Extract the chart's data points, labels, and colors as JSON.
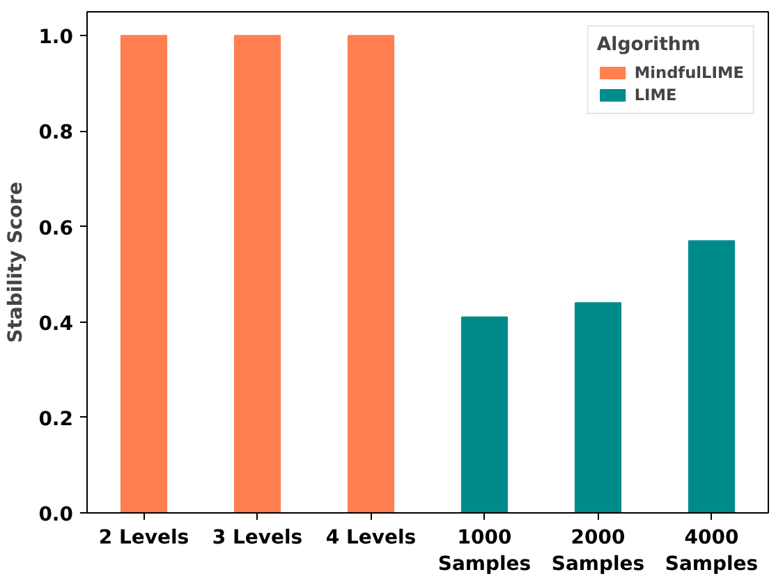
{
  "chart_data": {
    "type": "bar",
    "ylabel": "Stability Score",
    "legend_title": "Algorithm",
    "legend": "top right",
    "grid": false,
    "categories": [
      "2 Levels",
      "3 Levels",
      "4 Levels",
      "1000\nSamples",
      "2000\nSamples",
      "4000\nSamples"
    ],
    "series": [
      {
        "name": "MindfulLIME",
        "color": "#ff7f50",
        "values": [
          1.0,
          1.0,
          1.0,
          null,
          null,
          null
        ]
      },
      {
        "name": "LIME",
        "color": "#008b8b",
        "values": [
          null,
          null,
          null,
          0.41,
          0.44,
          0.57
        ]
      }
    ],
    "ylim": [
      0,
      1.05
    ],
    "yticks": [
      {
        "value": 0,
        "label": "0.0"
      },
      {
        "value": 0.2,
        "label": "0.2"
      },
      {
        "value": 0.4,
        "label": "0.4"
      },
      {
        "value": 0.6,
        "label": "0.6"
      },
      {
        "value": 0.8,
        "label": "0.8"
      },
      {
        "value": 1.0,
        "label": "1.0"
      }
    ]
  }
}
